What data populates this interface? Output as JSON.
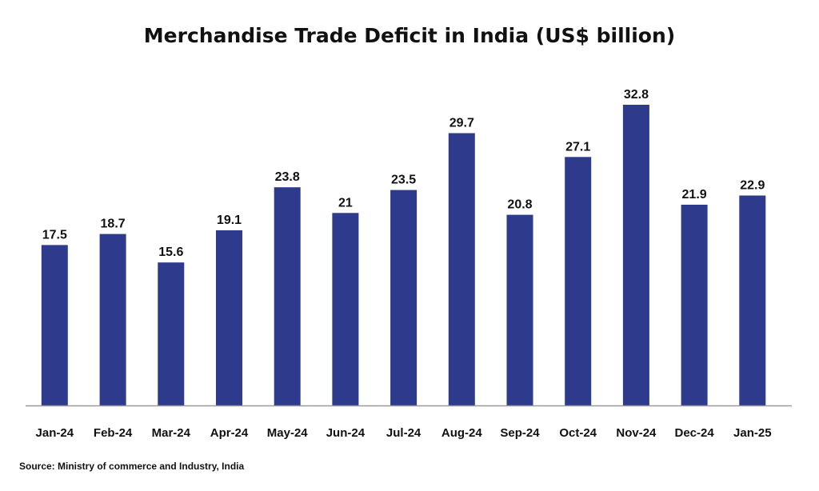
{
  "chart_data": {
    "type": "bar",
    "title": "Merchandise Trade Deficit in India (US$ billion)",
    "categories": [
      "Jan-24",
      "Feb-24",
      "Mar-24",
      "Apr-24",
      "May-24",
      "Jun-24",
      "Jul-24",
      "Aug-24",
      "Sep-24",
      "Oct-24",
      "Nov-24",
      "Dec-24",
      "Jan-25"
    ],
    "values": [
      17.5,
      18.7,
      15.6,
      19.1,
      23.8,
      21,
      23.5,
      29.7,
      20.8,
      27.1,
      32.8,
      21.9,
      22.9
    ],
    "value_labels": [
      "17.5",
      "18.7",
      "15.6",
      "19.1",
      "23.8",
      "21",
      "23.5",
      "29.7",
      "20.8",
      "27.1",
      "32.8",
      "21.9",
      "22.9"
    ],
    "xlabel": "",
    "ylabel": "",
    "ylim": [
      0,
      32.8
    ],
    "grid": false,
    "legend": "none",
    "bar_color": "#2E3A8C",
    "axis_color": "#9a9a9a"
  },
  "source": "Source: Ministry of commerce and Industry, India"
}
